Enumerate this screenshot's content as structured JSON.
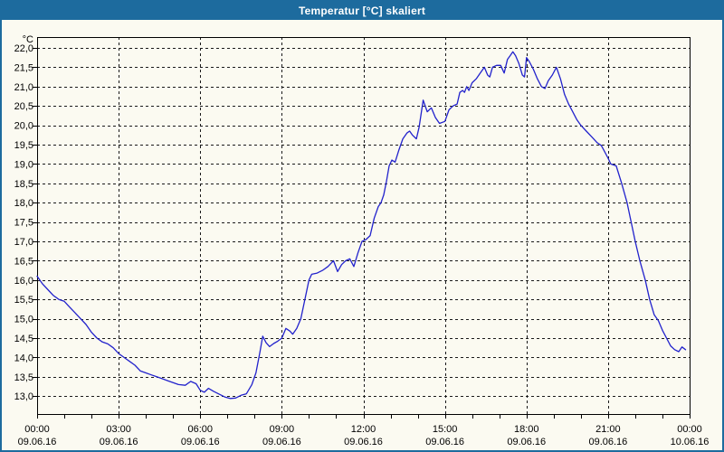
{
  "window": {
    "title": "Temperatur [°C] skaliert",
    "title_bar_color": "#1d6b9e",
    "border_color": "#1d6b9e",
    "background_color": "#fbfaf1"
  },
  "chart_data": {
    "type": "line",
    "title": "Temperatur [°C] skaliert",
    "ylabel": "°C",
    "xlabel": "",
    "grid": "dashed-on",
    "legend_position": "none",
    "ylim": [
      12.45,
      22.3
    ],
    "ytick_values": [
      22,
      21.5,
      21,
      20.5,
      20,
      19.5,
      19,
      18.5,
      18,
      17.5,
      17,
      16.5,
      16,
      15.5,
      15,
      14.5,
      14,
      13.5,
      13
    ],
    "ytick_labels": [
      "22,0",
      "21,5",
      "21,0",
      "20,5",
      "20,0",
      "19,5",
      "19,0",
      "18,5",
      "18,0",
      "17,5",
      "17,0",
      "16,5",
      "16,0",
      "15,5",
      "15,0",
      "14,5",
      "14,0",
      "13,5",
      "13,0"
    ],
    "xlim_hours": [
      0,
      24.05
    ],
    "x_minor_tick_every_hours": 1,
    "x_major_ticks": [
      {
        "hour": 0,
        "time": "00:00",
        "date": "09.06.16"
      },
      {
        "hour": 3,
        "time": "03:00",
        "date": "09.06.16"
      },
      {
        "hour": 6,
        "time": "06:00",
        "date": "09.06.16"
      },
      {
        "hour": 9,
        "time": "09:00",
        "date": "09.06.16"
      },
      {
        "hour": 12,
        "time": "12:00",
        "date": "09.06.16"
      },
      {
        "hour": 15,
        "time": "15:00",
        "date": "09.06.16"
      },
      {
        "hour": 18,
        "time": "18:00",
        "date": "09.06.16"
      },
      {
        "hour": 21,
        "time": "21:00",
        "date": "09.06.16"
      },
      {
        "hour": 24,
        "time": "00:00",
        "date": "10.06.16"
      }
    ],
    "series": [
      {
        "name": "Temperatur [°C]",
        "color": "#2222cc",
        "points": [
          [
            0,
            16.1
          ],
          [
            0.2,
            15.9
          ],
          [
            0.4,
            15.75
          ],
          [
            0.6,
            15.6
          ],
          [
            0.8,
            15.5
          ],
          [
            1,
            15.45
          ],
          [
            1.2,
            15.3
          ],
          [
            1.4,
            15.15
          ],
          [
            1.6,
            15.0
          ],
          [
            1.8,
            14.85
          ],
          [
            2,
            14.65
          ],
          [
            2.2,
            14.5
          ],
          [
            2.4,
            14.4
          ],
          [
            2.6,
            14.35
          ],
          [
            2.8,
            14.25
          ],
          [
            3,
            14.1
          ],
          [
            3.2,
            14.0
          ],
          [
            3.4,
            13.9
          ],
          [
            3.6,
            13.8
          ],
          [
            3.8,
            13.65
          ],
          [
            4,
            13.6
          ],
          [
            4.2,
            13.55
          ],
          [
            4.4,
            13.5
          ],
          [
            4.6,
            13.45
          ],
          [
            4.8,
            13.4
          ],
          [
            5,
            13.35
          ],
          [
            5.2,
            13.3
          ],
          [
            5.45,
            13.28
          ],
          [
            5.65,
            13.38
          ],
          [
            5.85,
            13.32
          ],
          [
            6,
            13.15
          ],
          [
            6.15,
            13.1
          ],
          [
            6.3,
            13.2
          ],
          [
            6.5,
            13.12
          ],
          [
            6.7,
            13.05
          ],
          [
            6.9,
            12.98
          ],
          [
            7.1,
            12.94
          ],
          [
            7.3,
            12.95
          ],
          [
            7.5,
            13.02
          ],
          [
            7.7,
            13.06
          ],
          [
            7.9,
            13.3
          ],
          [
            8.05,
            13.6
          ],
          [
            8.2,
            14.15
          ],
          [
            8.3,
            14.55
          ],
          [
            8.42,
            14.38
          ],
          [
            8.55,
            14.28
          ],
          [
            8.7,
            14.36
          ],
          [
            8.85,
            14.42
          ],
          [
            9,
            14.5
          ],
          [
            9.15,
            14.75
          ],
          [
            9.3,
            14.68
          ],
          [
            9.4,
            14.6
          ],
          [
            9.55,
            14.75
          ],
          [
            9.7,
            15.0
          ],
          [
            9.85,
            15.5
          ],
          [
            10,
            16.0
          ],
          [
            10.1,
            16.15
          ],
          [
            10.3,
            16.18
          ],
          [
            10.5,
            16.25
          ],
          [
            10.7,
            16.35
          ],
          [
            10.9,
            16.5
          ],
          [
            11.05,
            16.22
          ],
          [
            11.2,
            16.4
          ],
          [
            11.35,
            16.5
          ],
          [
            11.5,
            16.55
          ],
          [
            11.65,
            16.35
          ],
          [
            11.8,
            16.7
          ],
          [
            11.95,
            17.0
          ],
          [
            12.1,
            17.05
          ],
          [
            12.25,
            17.15
          ],
          [
            12.4,
            17.6
          ],
          [
            12.55,
            17.9
          ],
          [
            12.65,
            18.0
          ],
          [
            12.75,
            18.2
          ],
          [
            12.85,
            18.55
          ],
          [
            12.95,
            18.95
          ],
          [
            13.05,
            19.1
          ],
          [
            13.17,
            19.05
          ],
          [
            13.3,
            19.35
          ],
          [
            13.45,
            19.65
          ],
          [
            13.6,
            19.8
          ],
          [
            13.7,
            19.85
          ],
          [
            13.8,
            19.75
          ],
          [
            13.95,
            19.65
          ],
          [
            14.05,
            19.95
          ],
          [
            14.2,
            20.65
          ],
          [
            14.35,
            20.35
          ],
          [
            14.5,
            20.45
          ],
          [
            14.65,
            20.2
          ],
          [
            14.8,
            20.05
          ],
          [
            15,
            20.1
          ],
          [
            15.15,
            20.4
          ],
          [
            15.3,
            20.5
          ],
          [
            15.45,
            20.55
          ],
          [
            15.55,
            20.85
          ],
          [
            15.65,
            20.9
          ],
          [
            15.72,
            20.85
          ],
          [
            15.8,
            21.0
          ],
          [
            15.88,
            20.9
          ],
          [
            16,
            21.1
          ],
          [
            16.15,
            21.2
          ],
          [
            16.3,
            21.35
          ],
          [
            16.45,
            21.5
          ],
          [
            16.57,
            21.3
          ],
          [
            16.65,
            21.25
          ],
          [
            16.75,
            21.5
          ],
          [
            16.9,
            21.55
          ],
          [
            17.05,
            21.55
          ],
          [
            17.18,
            21.35
          ],
          [
            17.3,
            21.7
          ],
          [
            17.4,
            21.8
          ],
          [
            17.5,
            21.9
          ],
          [
            17.6,
            21.8
          ],
          [
            17.72,
            21.6
          ],
          [
            17.85,
            21.3
          ],
          [
            17.93,
            21.25
          ],
          [
            18,
            21.75
          ],
          [
            18.1,
            21.65
          ],
          [
            18.25,
            21.45
          ],
          [
            18.4,
            21.2
          ],
          [
            18.55,
            21.0
          ],
          [
            18.68,
            20.95
          ],
          [
            18.8,
            21.15
          ],
          [
            18.95,
            21.3
          ],
          [
            19.1,
            21.5
          ],
          [
            19.25,
            21.2
          ],
          [
            19.4,
            20.8
          ],
          [
            19.55,
            20.55
          ],
          [
            19.7,
            20.35
          ],
          [
            19.85,
            20.15
          ],
          [
            20,
            20.0
          ],
          [
            20.2,
            19.85
          ],
          [
            20.4,
            19.7
          ],
          [
            20.6,
            19.55
          ],
          [
            20.75,
            19.48
          ],
          [
            20.85,
            19.35
          ],
          [
            21,
            19.15
          ],
          [
            21.1,
            19.0
          ],
          [
            21.3,
            18.95
          ],
          [
            21.5,
            18.5
          ],
          [
            21.7,
            18.0
          ],
          [
            21.85,
            17.5
          ],
          [
            22,
            17.0
          ],
          [
            22.17,
            16.5
          ],
          [
            22.37,
            16.0
          ],
          [
            22.53,
            15.5
          ],
          [
            22.7,
            15.1
          ],
          [
            22.85,
            14.95
          ],
          [
            23,
            14.7
          ],
          [
            23.15,
            14.5
          ],
          [
            23.3,
            14.3
          ],
          [
            23.45,
            14.2
          ],
          [
            23.6,
            14.15
          ],
          [
            23.72,
            14.27
          ],
          [
            23.85,
            14.2
          ]
        ]
      }
    ]
  }
}
